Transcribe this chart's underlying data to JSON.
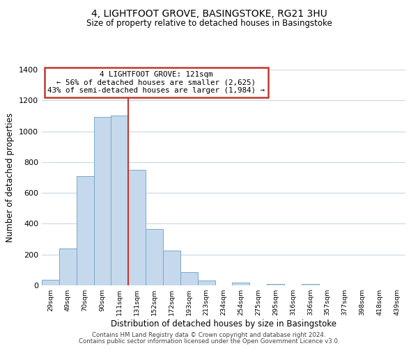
{
  "title": "4, LIGHTFOOT GROVE, BASINGSTOKE, RG21 3HU",
  "subtitle": "Size of property relative to detached houses in Basingstoke",
  "xlabel": "Distribution of detached houses by size in Basingstoke",
  "ylabel": "Number of detached properties",
  "bar_labels": [
    "29sqm",
    "49sqm",
    "70sqm",
    "90sqm",
    "111sqm",
    "131sqm",
    "152sqm",
    "172sqm",
    "193sqm",
    "213sqm",
    "234sqm",
    "254sqm",
    "275sqm",
    "295sqm",
    "316sqm",
    "336sqm",
    "357sqm",
    "377sqm",
    "398sqm",
    "418sqm",
    "439sqm"
  ],
  "bar_heights": [
    35,
    240,
    710,
    1095,
    1100,
    750,
    365,
    225,
    88,
    32,
    0,
    18,
    0,
    10,
    0,
    8,
    0,
    0,
    0,
    0,
    0
  ],
  "bar_color": "#c5d8ec",
  "bar_edge_color": "#7aaac8",
  "vline_x": 4.5,
  "annotation_title": "4 LIGHTFOOT GROVE: 121sqm",
  "annotation_line1": "← 56% of detached houses are smaller (2,625)",
  "annotation_line2": "43% of semi-detached houses are larger (1,984) →",
  "vline_color": "#c0392b",
  "annotation_box_color": "#ffffff",
  "annotation_box_edge": "#c0392b",
  "ylim": [
    0,
    1400
  ],
  "yticks": [
    0,
    200,
    400,
    600,
    800,
    1000,
    1200,
    1400
  ],
  "footer1": "Contains HM Land Registry data © Crown copyright and database right 2024.",
  "footer2": "Contains public sector information licensed under the Open Government Licence v3.0.",
  "background_color": "#ffffff",
  "grid_color": "#c8d8e8"
}
